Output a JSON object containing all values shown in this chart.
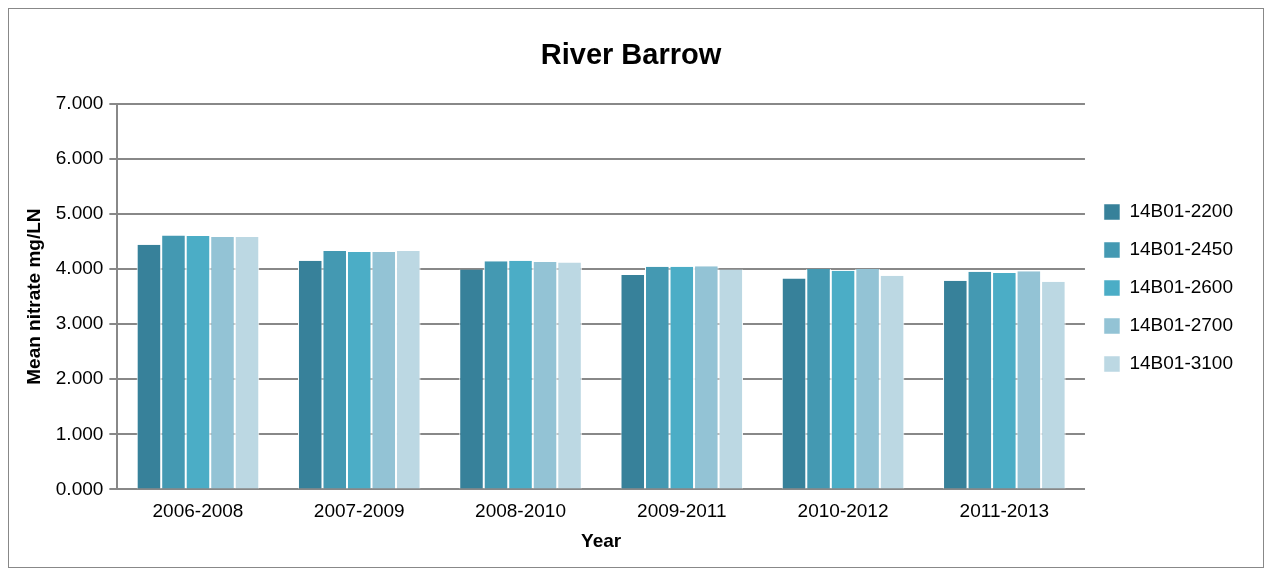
{
  "chart_data": {
    "type": "bar",
    "title": "River Barrow",
    "xlabel": "Year",
    "ylabel": "Mean nitrate mg/LN",
    "categories": [
      "2006-2008",
      "2007-2009",
      "2008-2010",
      "2009-2011",
      "2010-2012",
      "2011-2013"
    ],
    "series": [
      {
        "name": "14B01-2200",
        "color": "#37819a",
        "values": [
          4.44,
          4.15,
          3.99,
          3.89,
          3.83,
          3.79
        ]
      },
      {
        "name": "14B01-2450",
        "color": "#4499b2",
        "values": [
          4.61,
          4.33,
          4.14,
          4.04,
          4.0,
          3.95
        ]
      },
      {
        "name": "14B01-2600",
        "color": "#4badc6",
        "values": [
          4.6,
          4.31,
          4.15,
          4.04,
          3.97,
          3.93
        ]
      },
      {
        "name": "14B01-2700",
        "color": "#93c3d5",
        "values": [
          4.58,
          4.31,
          4.13,
          4.05,
          4.0,
          3.96
        ]
      },
      {
        "name": "14B01-3100",
        "color": "#bcd8e3",
        "values": [
          4.58,
          4.33,
          4.12,
          3.99,
          3.88,
          3.77
        ]
      }
    ],
    "ylim": [
      0,
      7
    ],
    "yticks": [
      {
        "value": 0,
        "label": "0.000"
      },
      {
        "value": 1,
        "label": "1.000"
      },
      {
        "value": 2,
        "label": "2.000"
      },
      {
        "value": 3,
        "label": "3.000"
      },
      {
        "value": 4,
        "label": "4.000"
      },
      {
        "value": 5,
        "label": "5.000"
      },
      {
        "value": 6,
        "label": "6.000"
      },
      {
        "value": 7,
        "label": "7.000"
      }
    ],
    "grid": "y",
    "legend": "right"
  }
}
